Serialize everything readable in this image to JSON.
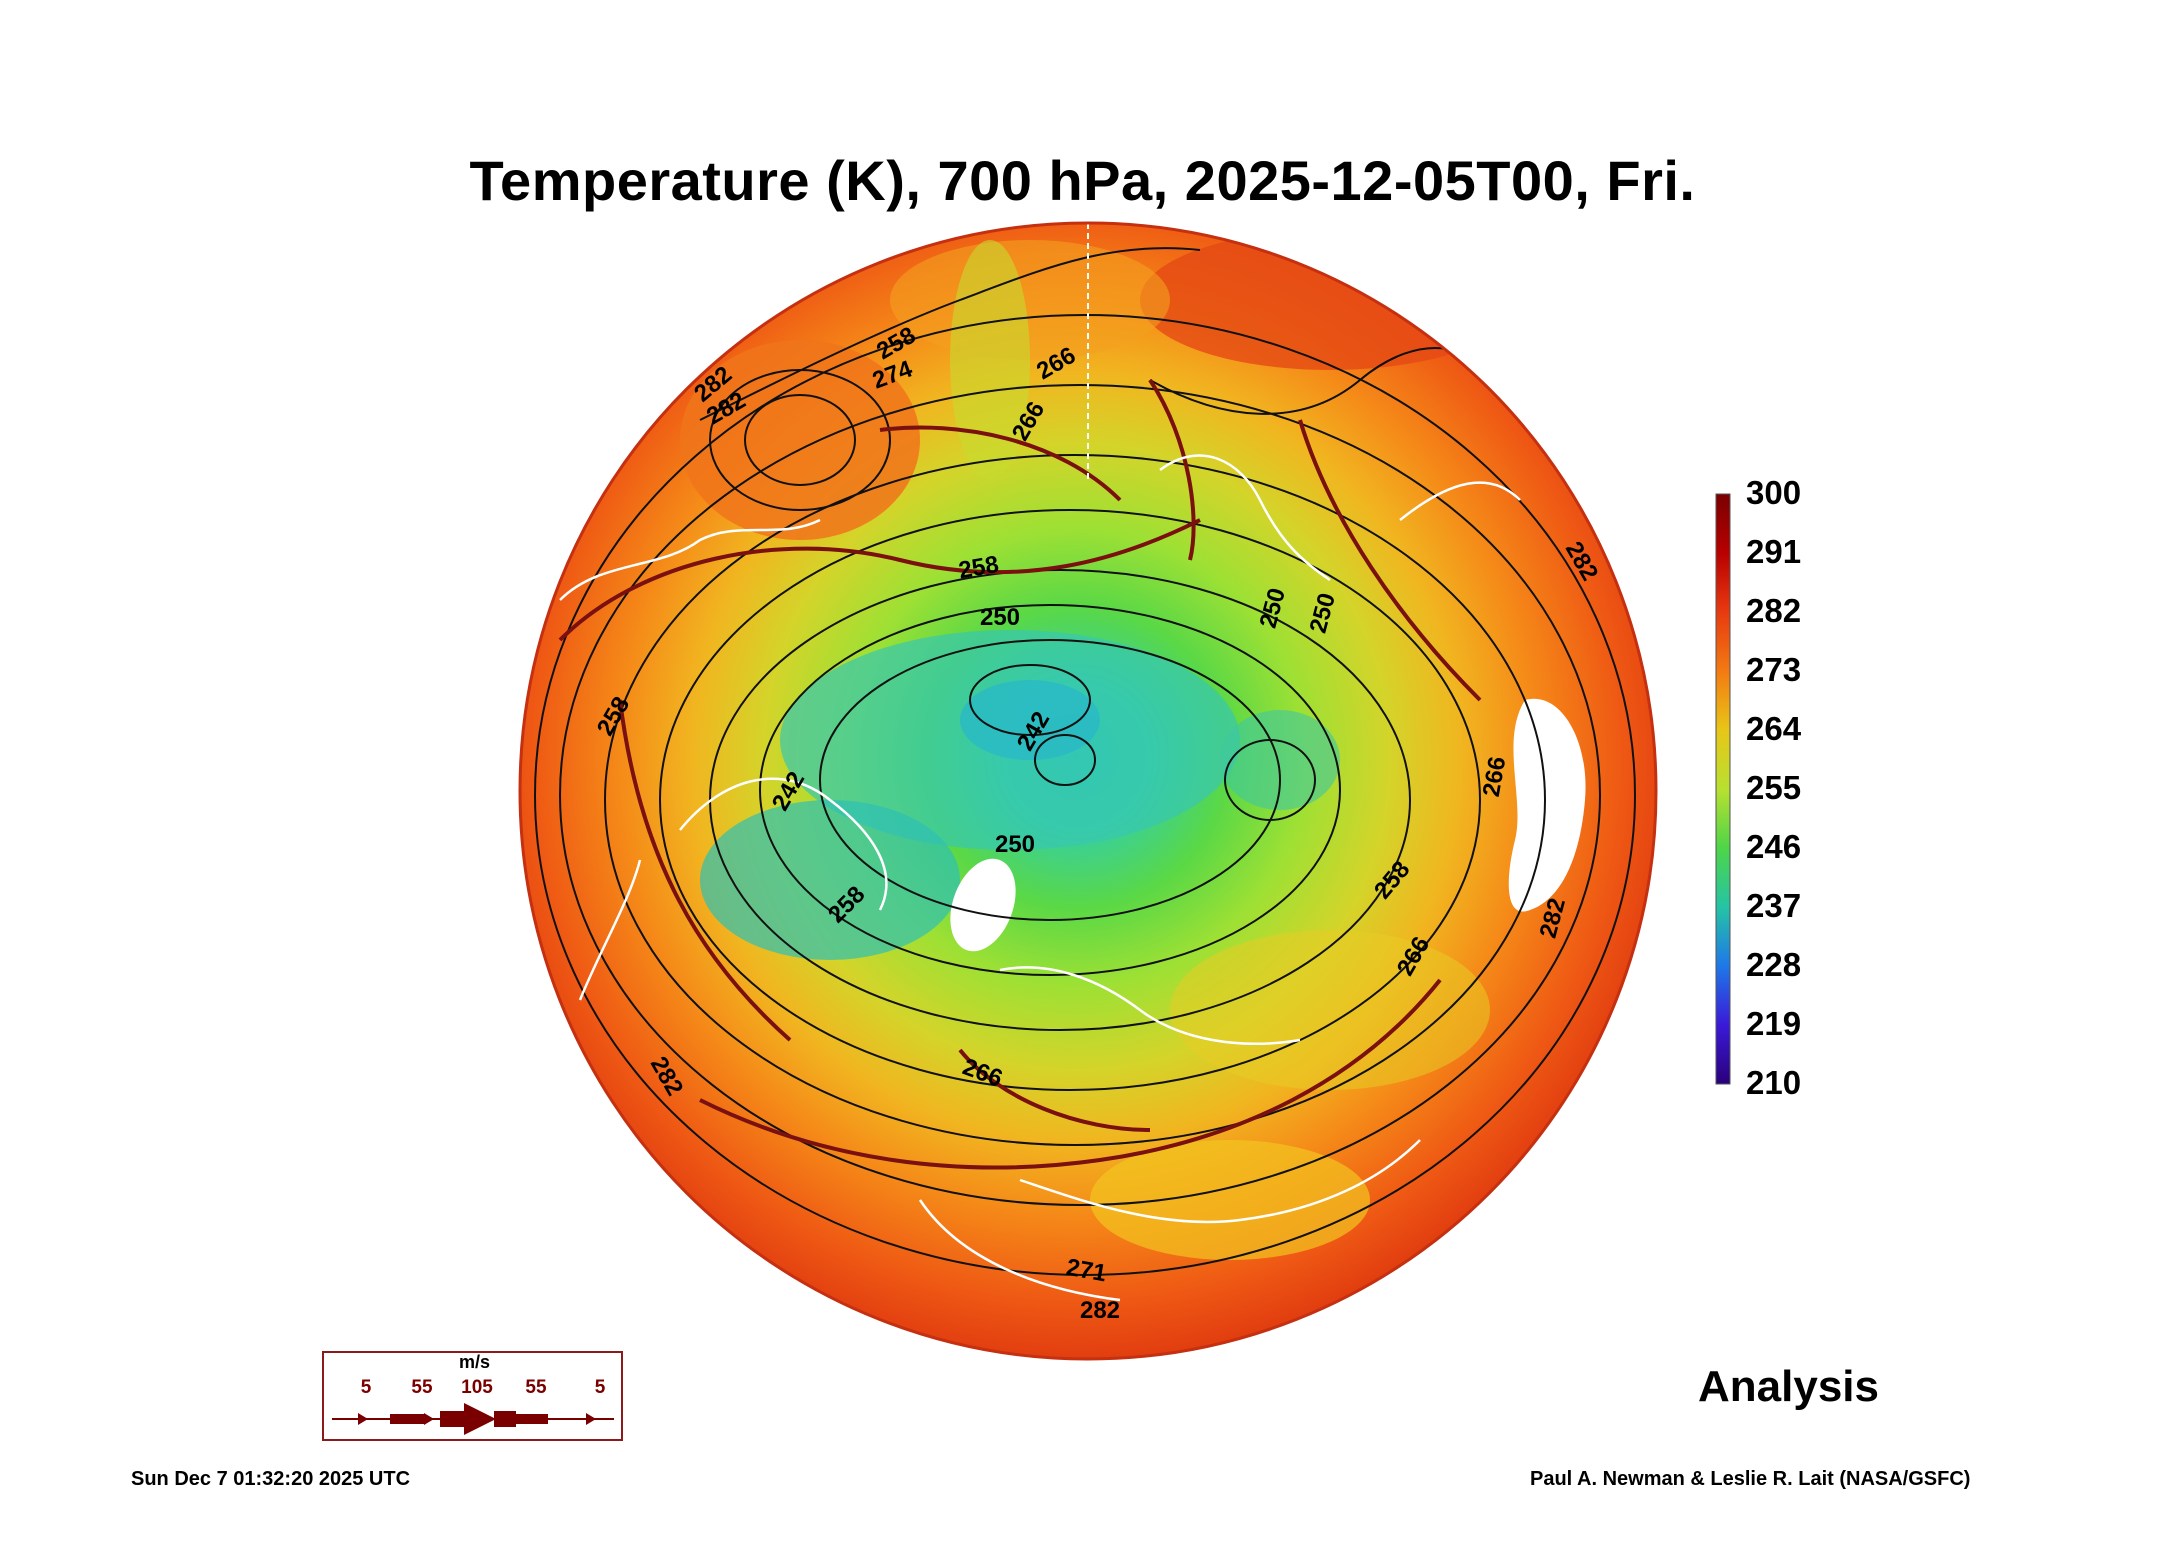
{
  "title": "Temperature (K), 700 hPa, 2025-12-05T00, Fri.",
  "colorbar": {
    "labels": [
      "300",
      "291",
      "282",
      "273",
      "264",
      "255",
      "246",
      "237",
      "228",
      "219",
      "210"
    ],
    "colors": [
      "#7a0000",
      "#b80000",
      "#e83a10",
      "#f37a12",
      "#e8c617",
      "#b8e030",
      "#4ed548",
      "#25c4a5",
      "#1e78e8",
      "#3a1ad8",
      "#2a007a"
    ]
  },
  "contour_labels": [
    "274",
    "266",
    "258",
    "250",
    "242",
    "242",
    "250",
    "258",
    "266",
    "282",
    "250",
    "250",
    "258",
    "266",
    "282",
    "271",
    "282",
    "266",
    "258",
    "282",
    "282",
    "258",
    "266",
    "282"
  ],
  "wind_legend": {
    "unit": "m/s",
    "values": [
      "5",
      "55",
      "105",
      "55",
      "5"
    ]
  },
  "analysis_label": "Analysis",
  "timestamp": "Sun Dec  7 01:32:20 2025 UTC",
  "credit": "Paul A. Newman & Leslie R. Lait (NASA/GSFC)"
}
